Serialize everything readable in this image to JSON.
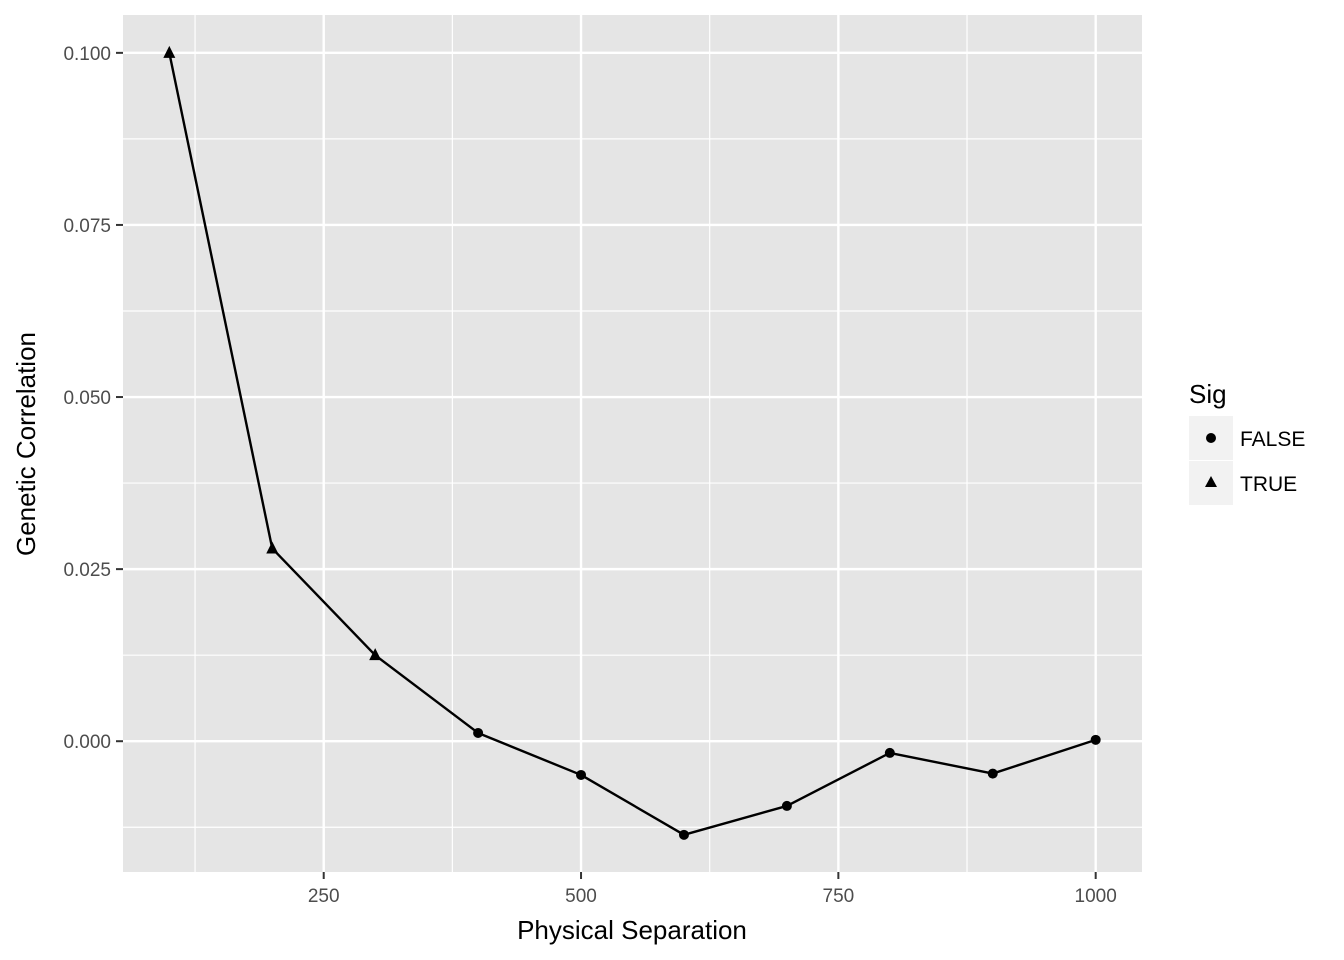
{
  "chart_data": {
    "type": "line",
    "xlabel": "Physical Separation",
    "ylabel": "Genetic Correlation",
    "xlim": [
      55,
      1045
    ],
    "ylim": [
      -0.019,
      0.1055
    ],
    "x_ticks": [
      250,
      500,
      750,
      1000
    ],
    "x_tick_labels": [
      "250",
      "500",
      "750",
      "1000"
    ],
    "y_ticks": [
      0.0,
      0.025,
      0.05,
      0.075,
      0.1
    ],
    "y_tick_labels": [
      "0.000",
      "0.025",
      "0.050",
      "0.075",
      "0.100"
    ],
    "grid": true,
    "legend": {
      "title": "Sig",
      "placement": "right",
      "entries": [
        {
          "label": "FALSE",
          "shape": "circle"
        },
        {
          "label": "TRUE",
          "shape": "triangle"
        }
      ]
    },
    "series": [
      {
        "x": [
          100,
          200,
          300,
          400,
          500,
          600,
          700,
          800,
          900,
          1000
        ],
        "y": [
          0.1,
          0.028,
          0.0125,
          0.0012,
          -0.0049,
          -0.0136,
          -0.0094,
          -0.0017,
          -0.0047,
          0.0002
        ],
        "sig": [
          true,
          true,
          true,
          false,
          false,
          false,
          false,
          false,
          false,
          false
        ]
      }
    ],
    "colors": {
      "panel": "#e5e5e5",
      "grid": "#ffffff",
      "line": "#000000",
      "legend_key": "#f2f2f2"
    }
  }
}
